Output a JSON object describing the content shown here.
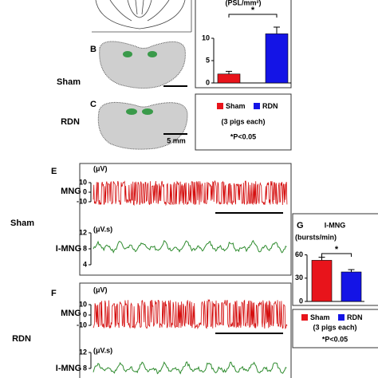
{
  "panel_labels": {
    "b": "B",
    "c": "C",
    "e": "E",
    "f": "F"
  },
  "group_labels": {
    "top_sham": "Sham",
    "top_rdn": "RDN",
    "bottom_sham": "Sham",
    "bottom_rdn": "RDN"
  },
  "scale_label": "5 mm",
  "panel_e": {
    "mng_unit": "(μV)",
    "mng_label": "MNG",
    "mng_yticks": [
      10,
      0,
      -10
    ],
    "imng_unit": "(μV.s)",
    "imng_label": "I-MNG",
    "imng_yticks": [
      12,
      8,
      4
    ]
  },
  "panel_f": {
    "mng_unit": "(μV)",
    "mng_label": "MNG",
    "mng_yticks": [
      10,
      0,
      -10
    ],
    "imng_unit": "(μV.s)",
    "imng_label": "I-MNG",
    "imng_yticks": [
      12,
      8
    ]
  },
  "chart_data": [
    {
      "type": "bar",
      "y_label": "(PSL/mm²)",
      "ylim": [
        0,
        15
      ],
      "yticks": [
        0,
        5,
        10
      ],
      "series": [
        {
          "name": "Sham",
          "color": "#e8141b",
          "values": [
            2
          ],
          "errors": [
            0.6
          ]
        },
        {
          "name": "RDN",
          "color": "#1414e6",
          "values": [
            11
          ],
          "errors": [
            1.5
          ]
        }
      ],
      "significance_mark": "*",
      "legend_note": "(3 pigs each)",
      "significance_note": "*P<0.05"
    },
    {
      "type": "bar",
      "panel_label": "G",
      "title": "I-MNG",
      "y_label": "(bursts/min)",
      "ylim": [
        0,
        75
      ],
      "yticks": [
        0,
        30,
        60
      ],
      "series": [
        {
          "name": "Sham",
          "color": "#e8141b",
          "values": [
            53
          ],
          "errors": [
            4
          ]
        },
        {
          "name": "RDN",
          "color": "#1414e6",
          "values": [
            38
          ],
          "errors": [
            3
          ]
        }
      ],
      "significance_mark": "*",
      "legend_note": "(3 pigs each)",
      "significance_note": "*P<0.05"
    }
  ]
}
